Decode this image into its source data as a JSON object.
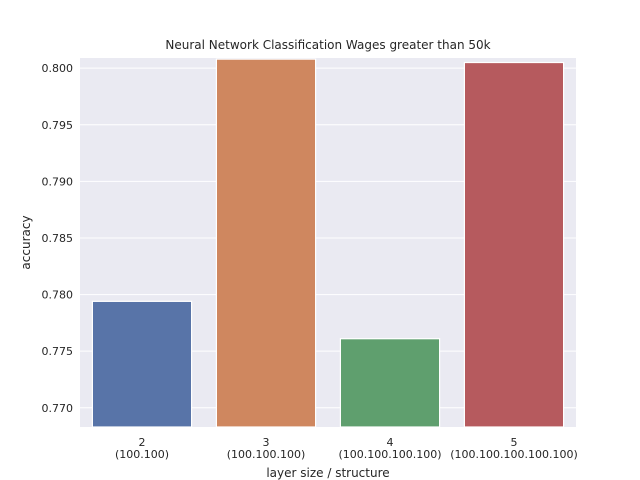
{
  "chart_data": {
    "type": "bar",
    "title": "Neural Network Classification Wages greater than 50k",
    "xlabel": "layer size / structure",
    "ylabel": "accuracy",
    "categories": [
      [
        "2",
        "(100.100)"
      ],
      [
        "3",
        "(100.100.100)"
      ],
      [
        "4",
        "(100.100.100.100)"
      ],
      [
        "5",
        "(100.100.100.100.100)"
      ]
    ],
    "values": [
      0.7794,
      0.8008,
      0.7761,
      0.8005
    ],
    "colors": [
      "#5874a8",
      "#cf875f",
      "#5f9f6e",
      "#b65a5e"
    ],
    "ylim": [
      0.7683,
      0.8009
    ],
    "yticks": [
      0.77,
      0.775,
      0.78,
      0.785,
      0.79,
      0.795,
      0.8
    ],
    "ytick_labels": [
      "0.770",
      "0.775",
      "0.780",
      "0.785",
      "0.790",
      "0.795",
      "0.800"
    ],
    "grid": true,
    "background": "#eaeaf2"
  }
}
